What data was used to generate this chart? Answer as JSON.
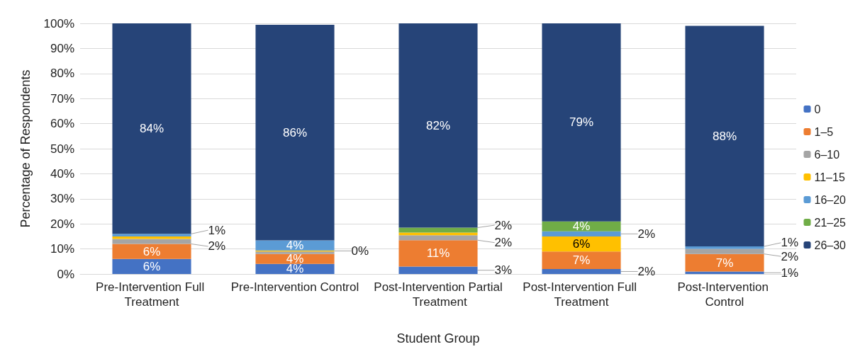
{
  "chart_data": {
    "type": "bar",
    "stacked": true,
    "xlabel": "Student Group",
    "ylabel": "Percentage of Respondents",
    "categories": [
      "Pre-Intervention Full Treatment",
      "Pre-Intervention Control",
      "Post-Intervention Partial Treatment",
      "Post-Intervention Full Treatment",
      "Post-Intervention Control"
    ],
    "ylim": [
      0,
      100
    ],
    "yticks": [
      {
        "value": 0,
        "label": "0%"
      },
      {
        "value": 10,
        "label": "10%"
      },
      {
        "value": 20,
        "label": "20%"
      },
      {
        "value": 30,
        "label": "30%"
      },
      {
        "value": 40,
        "label": "40%"
      },
      {
        "value": 50,
        "label": "50%"
      },
      {
        "value": 60,
        "label": "60%"
      },
      {
        "value": 70,
        "label": "70%"
      },
      {
        "value": 80,
        "label": "80%"
      },
      {
        "value": 90,
        "label": "90%"
      },
      {
        "value": 100,
        "label": "100%"
      }
    ],
    "grid": "y",
    "legend": "right",
    "series": [
      {
        "name": "0",
        "color": "#4472c4",
        "values": [
          6,
          4,
          3,
          2,
          1
        ],
        "value_labels": [
          "6%",
          "4%",
          "3%",
          "2%",
          "1%"
        ]
      },
      {
        "name": "1–5",
        "color": "#ed7d31",
        "values": [
          6,
          4,
          10.5,
          7,
          7
        ],
        "value_labels": [
          "6%",
          "4%",
          "11%",
          "7%",
          "7%"
        ]
      },
      {
        "name": "6–10",
        "color": "#a5a5a5",
        "values": [
          2,
          1,
          2,
          0,
          2
        ],
        "value_labels": [
          "2%",
          null,
          "2%",
          null,
          "2%"
        ]
      },
      {
        "name": "11–15",
        "color": "#ffc000",
        "values": [
          1,
          0.4,
          1,
          6,
          0
        ],
        "value_labels": [
          null,
          "0%",
          null,
          "6%",
          null
        ]
      },
      {
        "name": "16–20",
        "color": "#5b9bd5",
        "values": [
          1,
          4,
          0,
          2,
          1
        ],
        "value_labels": [
          "1%",
          "4%",
          null,
          "2%",
          "1%"
        ]
      },
      {
        "name": "21–25",
        "color": "#70ad47",
        "values": [
          0,
          0,
          2,
          4,
          0
        ],
        "value_labels": [
          null,
          null,
          "2%",
          "4%",
          null
        ]
      },
      {
        "name": "26–30",
        "color": "#264478",
        "values": [
          84,
          86,
          81.5,
          79,
          88
        ],
        "value_labels": [
          "84%",
          "86%",
          "82%",
          "79%",
          "88%"
        ]
      }
    ]
  }
}
